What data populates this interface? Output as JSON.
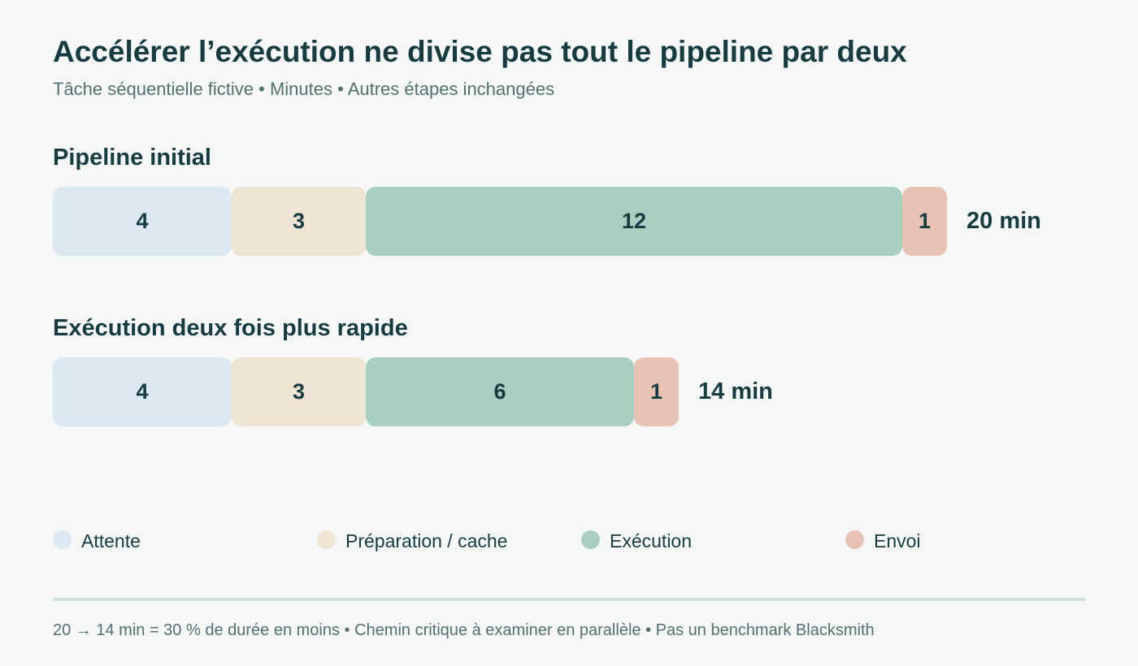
{
  "header": {
    "title": "Accélérer l’exécution ne divise pas tout le pipeline par deux",
    "subtitle": "Tâche séquentielle fictive • Minutes • Autres étapes inchangées"
  },
  "chart_data": {
    "type": "bar",
    "orientation": "horizontal",
    "stacked": true,
    "unit": "Minutes",
    "categories": [
      "Pipeline initial",
      "Exécution deux fois plus rapide"
    ],
    "series": [
      {
        "name": "Attente",
        "values": [
          4,
          4
        ],
        "color": "#dce9f2"
      },
      {
        "name": "Préparation / cache",
        "values": [
          3,
          3
        ],
        "color": "#efe3d3"
      },
      {
        "name": "Exécution",
        "values": [
          12,
          6
        ],
        "color": "#a8cfbf"
      },
      {
        "name": "Envoi",
        "values": [
          1,
          1
        ],
        "color": "#e8c3b5"
      }
    ],
    "totals": [
      "20 min",
      "14 min"
    ],
    "legend_position": "bottom",
    "grid": false
  },
  "footnote": "20 → 14 min = 30 % de durée en moins • Chemin critique à examiner en parallèle • Pas un benchmark Blacksmith"
}
